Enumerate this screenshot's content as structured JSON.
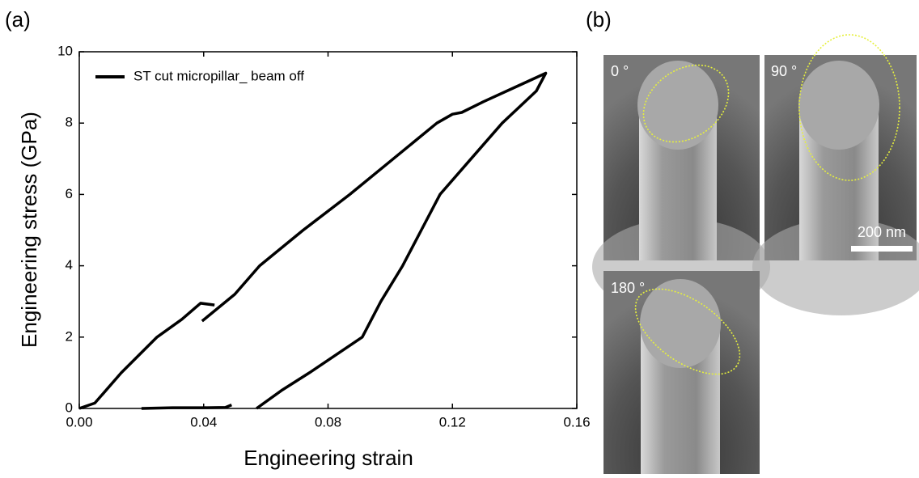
{
  "chart_data": {
    "type": "line",
    "xlabel": "Engineering strain",
    "ylabel": "Engineering stress (GPa)",
    "xlim": [
      0,
      0.16
    ],
    "ylim": [
      0,
      10
    ],
    "xticks": [
      {
        "value": 0,
        "label": "0.00"
      },
      {
        "value": 0.04,
        "label": "0.04"
      },
      {
        "value": 0.08,
        "label": "0.08"
      },
      {
        "value": 0.12,
        "label": "0.12"
      },
      {
        "value": 0.16,
        "label": "0.16"
      }
    ],
    "yticks": [
      0,
      2,
      4,
      6,
      8,
      10
    ],
    "legend": "upper left",
    "series": [
      {
        "name": "ST cut micropillar_ beam off",
        "color": "#000000",
        "x": [
          0,
          0.005,
          0.0135,
          0.025,
          0.033,
          0.039,
          0.0435,
          null,
          0.0395,
          0.05,
          0.058,
          0.072,
          0.087,
          0.101,
          0.115,
          0.12,
          0.123,
          0.13,
          0.14,
          0.15,
          0.147,
          0.136,
          0.126,
          0.116,
          0.11,
          0.104,
          0.097,
          0.091,
          0.074,
          0.065,
          0.057,
          null,
          0.02,
          0.03,
          0.04,
          0.047,
          0.049
        ],
        "values": [
          0,
          0.15,
          1,
          2,
          2.5,
          2.95,
          2.9,
          null,
          2.45,
          3.2,
          4,
          5,
          6,
          7,
          8,
          8.25,
          8.3,
          8.6,
          9.0,
          9.4,
          8.9,
          8,
          7,
          6,
          5,
          4,
          3,
          2,
          1,
          0.5,
          0,
          null,
          0,
          0.02,
          0.02,
          0.03,
          0.1
        ]
      }
    ]
  },
  "panel_labels": [
    "(a)",
    "(b)"
  ],
  "images": {
    "angles": [
      "0 °",
      "90 °",
      "180 °"
    ],
    "scale_bar": "200 nm"
  }
}
